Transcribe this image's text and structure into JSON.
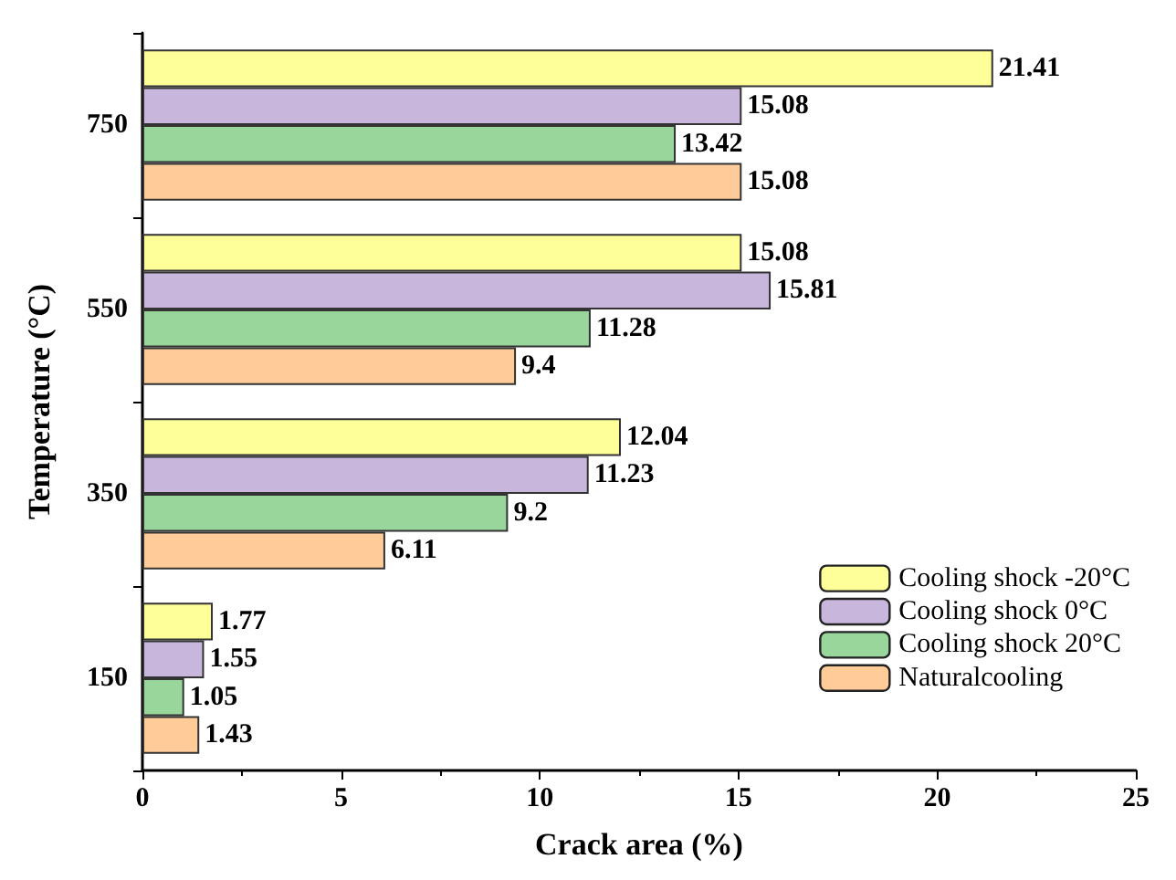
{
  "chart_data": {
    "type": "bar",
    "orientation": "horizontal",
    "xlabel": "Crack area (%)",
    "ylabel": "Temperature (°C)",
    "categories": [
      "750",
      "550",
      "350",
      "150"
    ],
    "series": [
      {
        "name": "Cooling shock -20°C",
        "color": "#ffff99",
        "values": [
          21.41,
          15.08,
          12.04,
          1.77
        ]
      },
      {
        "name": "Cooling shock 0°C",
        "color": "#c9b6dd",
        "values": [
          15.08,
          15.81,
          11.23,
          1.55
        ]
      },
      {
        "name": "Cooling shock 20°C",
        "color": "#99d69c",
        "values": [
          13.42,
          11.28,
          9.2,
          1.05
        ]
      },
      {
        "name": "Naturalcooling",
        "color": "#ffcc99",
        "values": [
          15.08,
          9.4,
          6.11,
          1.43
        ]
      }
    ],
    "xlim": [
      0,
      25
    ],
    "xticks": [
      0,
      5,
      10,
      15,
      20,
      25
    ],
    "data_labels": true,
    "legend": "bottom right",
    "grid": false
  }
}
